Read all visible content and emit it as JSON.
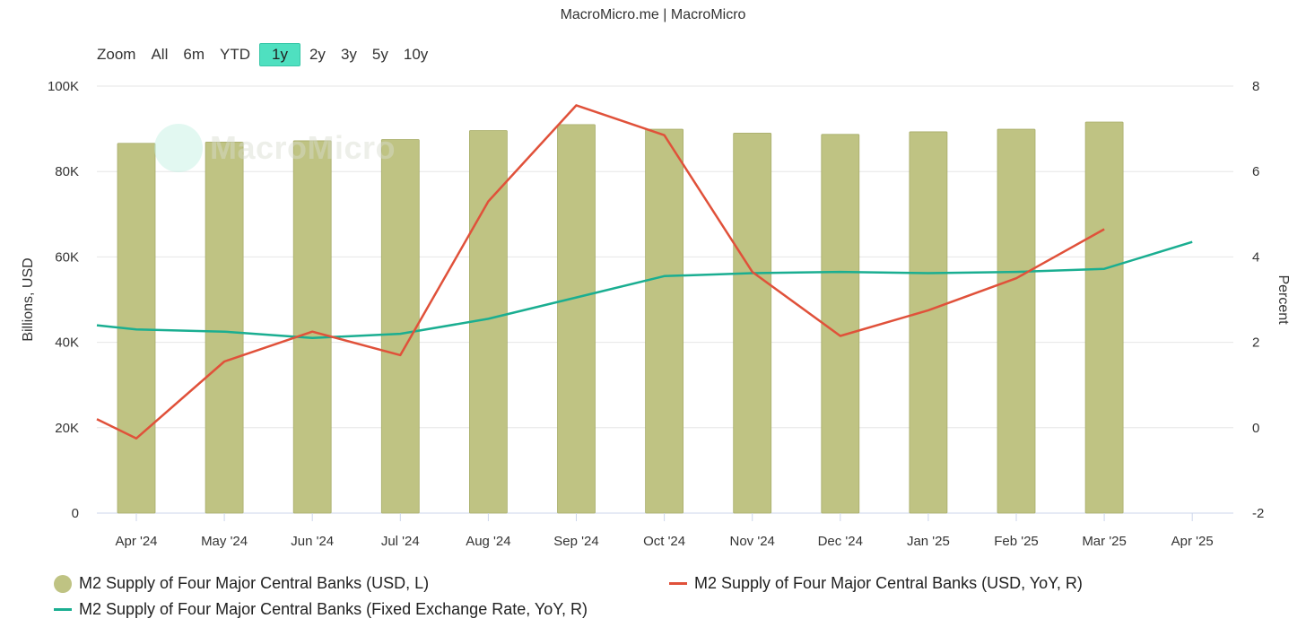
{
  "source_title": "MacroMicro.me | MacroMicro",
  "zoom": {
    "label": "Zoom",
    "options": [
      "All",
      "6m",
      "YTD",
      "1y",
      "2y",
      "3y",
      "5y",
      "10y"
    ],
    "active": "1y"
  },
  "watermark": "MacroMicro",
  "colors": {
    "bar": "#bfc383",
    "usd_yoy": "#e0513a",
    "fixed_yoy": "#1aae91",
    "active_zoom": "#4fe0c0"
  },
  "chart_data": {
    "type": "bar",
    "categories": [
      "Apr '24",
      "May '24",
      "Jun '24",
      "Jul '24",
      "Aug '24",
      "Sep '24",
      "Oct '24",
      "Nov '24",
      "Dec '24",
      "Jan '25",
      "Feb '25",
      "Mar '25",
      "Apr '25"
    ],
    "ylabel_left": "Billions, USD",
    "ylabel_right": "Percent",
    "ylim_left": [
      0,
      100000
    ],
    "ylim_right": [
      -2,
      8
    ],
    "yticks_left": [
      0,
      20000,
      40000,
      60000,
      80000,
      100000
    ],
    "ytick_labels_left": [
      "0",
      "20K",
      "40K",
      "60K",
      "80K",
      "100K"
    ],
    "yticks_right": [
      -2,
      0,
      2,
      4,
      6,
      8
    ],
    "ytick_labels_right": [
      "-2",
      "0",
      "2",
      "4",
      "6",
      "8"
    ],
    "grid": true,
    "legend_position": "bottom",
    "series": [
      {
        "name": "M2 Supply of Four Major Central Banks (USD, L)",
        "type": "bar",
        "axis": "left",
        "x": [
          "Apr '24",
          "May '24",
          "Jun '24",
          "Jul '24",
          "Aug '24",
          "Sep '24",
          "Oct '24",
          "Nov '24",
          "Dec '24",
          "Jan '25",
          "Feb '25",
          "Mar '25"
        ],
        "values": [
          86600,
          86900,
          87200,
          87500,
          89600,
          91000,
          89900,
          89000,
          88700,
          89300,
          89900,
          91600
        ]
      },
      {
        "name": "M2 Supply of Four Major Central Banks (USD, YoY, R)",
        "type": "line",
        "axis": "right",
        "x": [
          "Apr '24",
          "May '24",
          "Jun '24",
          "Jul '24",
          "Aug '24",
          "Sep '24",
          "Oct '24",
          "Nov '24",
          "Dec '24",
          "Jan '25",
          "Feb '25",
          "Mar '25"
        ],
        "values": [
          -0.25,
          1.55,
          2.25,
          1.7,
          5.3,
          7.55,
          6.85,
          3.65,
          2.15,
          2.75,
          3.5,
          4.65
        ],
        "start_value": 0.2
      },
      {
        "name": "M2 Supply of Four Major Central Banks (Fixed Exchange Rate, YoY, R)",
        "type": "line",
        "axis": "right",
        "x": [
          "Apr '24",
          "May '24",
          "Jun '24",
          "Jul '24",
          "Aug '24",
          "Sep '24",
          "Oct '24",
          "Nov '24",
          "Dec '24",
          "Jan '25",
          "Feb '25",
          "Mar '25",
          "Apr '25"
        ],
        "values": [
          2.3,
          2.25,
          2.1,
          2.2,
          2.55,
          3.05,
          3.55,
          3.62,
          3.65,
          3.62,
          3.65,
          3.72,
          4.35
        ],
        "start_value": 2.4
      }
    ]
  }
}
